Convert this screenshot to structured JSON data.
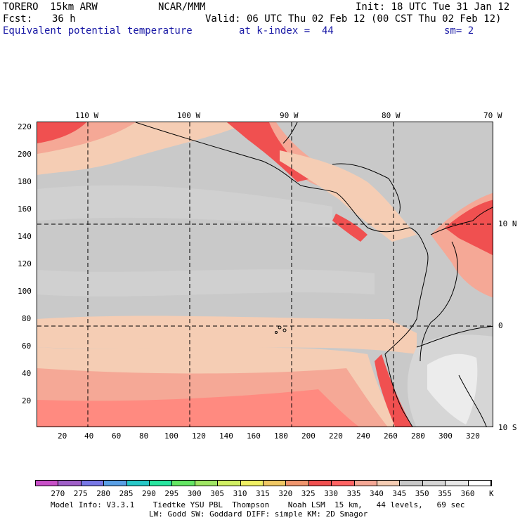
{
  "header": {
    "model": "TORERO  15km ARW",
    "org": "NCAR/MMM",
    "init": "Init: 18 UTC Tue 31 Jan 12",
    "fcst_label": "Fcst:",
    "fcst_value": "36 h",
    "valid": "Valid: 06 UTC Thu 02 Feb 12 (00 CST Thu 02 Feb 12)",
    "field": "Equivalent potential temperature",
    "level": "at k-index =  44",
    "smooth": "sm= 2"
  },
  "map": {
    "top_lon_labels": [
      "110 W",
      "100 W",
      "90 W",
      "80 W",
      "70 W"
    ],
    "right_lat_labels": [
      "10 N",
      "0",
      "10 S"
    ],
    "x_ticks": [
      "20",
      "40",
      "60",
      "80",
      "100",
      "120",
      "140",
      "160",
      "180",
      "200",
      "220",
      "240",
      "260",
      "280",
      "300",
      "320"
    ],
    "y_ticks": [
      "220",
      "200",
      "180",
      "160",
      "140",
      "120",
      "100",
      "80",
      "60",
      "40",
      "20"
    ]
  },
  "colorbar": {
    "labels": [
      "270",
      "275",
      "280",
      "285",
      "290",
      "295",
      "300",
      "305",
      "310",
      "315",
      "320",
      "325",
      "330",
      "335",
      "340",
      "345",
      "350",
      "355",
      "360"
    ],
    "unit": "K",
    "colors": [
      "#c850c8",
      "#a060c8",
      "#7878e6",
      "#5aa0e6",
      "#28c8c8",
      "#28e6a0",
      "#64e664",
      "#a0e664",
      "#d2f064",
      "#f0f064",
      "#f0c864",
      "#f0966e",
      "#f05050",
      "#ff6464",
      "#f5a896",
      "#f5cdb4",
      "#c9c9c9",
      "#d6d6d6",
      "#e8e8e8",
      "#ffffff"
    ]
  },
  "footer": {
    "line1": "Model Info: V3.3.1    Tiedtke YSU PBL  Thompson    Noah LSM  15 km,   44 levels,   69 sec",
    "line2": "LW: Godd SW: Goddard DIFF: simple KM: 2D Smagor"
  }
}
